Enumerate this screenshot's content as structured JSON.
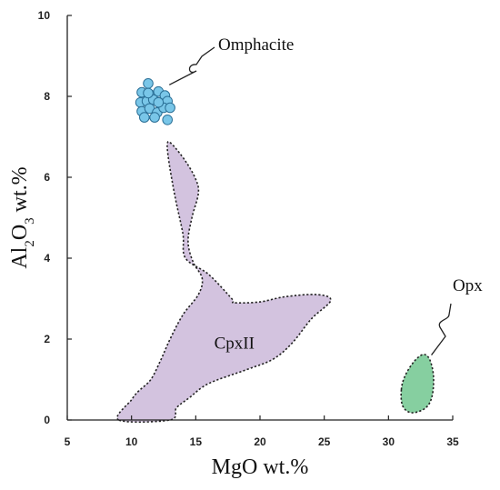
{
  "chart_data": {
    "type": "scatter",
    "xlabel": "MgO wt.%",
    "ylabel_parts": [
      "Al",
      "2",
      "O",
      "3",
      " wt.%"
    ],
    "xlim": [
      5,
      35
    ],
    "ylim": [
      0,
      10
    ],
    "x_ticks": [
      5,
      10,
      15,
      20,
      25,
      30,
      35
    ],
    "y_ticks": [
      0,
      2,
      4,
      6,
      8,
      10
    ],
    "grid": false,
    "colors": {
      "omphacite": "#79C6E8",
      "cpx": "#D3C3DF",
      "opx": "#86CFA0",
      "outline": "#222222"
    },
    "series": [
      {
        "name": "Omphacite",
        "kind": "points",
        "points": [
          [
            11.3,
            8.32
          ],
          [
            10.8,
            8.1
          ],
          [
            11.6,
            8.02
          ],
          [
            12.1,
            8.12
          ],
          [
            12.6,
            8.02
          ],
          [
            10.7,
            7.85
          ],
          [
            11.2,
            7.88
          ],
          [
            11.7,
            7.92
          ],
          [
            12.3,
            7.82
          ],
          [
            12.8,
            7.88
          ],
          [
            10.8,
            7.63
          ],
          [
            11.4,
            7.7
          ],
          [
            12.0,
            7.6
          ],
          [
            12.5,
            7.72
          ],
          [
            13.0,
            7.72
          ],
          [
            11.0,
            7.48
          ],
          [
            11.8,
            7.48
          ],
          [
            12.8,
            7.42
          ],
          [
            11.3,
            8.08
          ],
          [
            12.1,
            7.85
          ]
        ]
      },
      {
        "name": "CpxII",
        "kind": "region",
        "outline": [
          [
            9.0,
            0.0
          ],
          [
            11.5,
            1.0
          ],
          [
            13.5,
            2.0
          ],
          [
            15.5,
            3.0
          ],
          [
            16.5,
            3.3
          ],
          [
            16.0,
            3.55
          ],
          [
            15.0,
            3.9
          ],
          [
            14.6,
            4.5
          ],
          [
            15.0,
            5.0
          ],
          [
            15.3,
            5.6
          ],
          [
            14.8,
            6.1
          ],
          [
            13.8,
            6.65
          ],
          [
            12.8,
            6.95
          ],
          [
            12.8,
            6.3
          ],
          [
            13.3,
            5.0
          ],
          [
            14.0,
            3.7
          ],
          [
            13.5,
            2.5
          ],
          [
            10.5,
            1.5
          ],
          [
            9.0,
            0.0
          ]
        ],
        "smooth_outline": [
          [
            9.0,
            0.0
          ],
          [
            10.0,
            0.5
          ],
          [
            10.5,
            0.7
          ],
          [
            11.5,
            1.0
          ],
          [
            12.3,
            1.5
          ],
          [
            13.0,
            2.0
          ],
          [
            14.0,
            2.6
          ],
          [
            15.2,
            3.1
          ],
          [
            15.5,
            3.5
          ],
          [
            14.8,
            3.9
          ],
          [
            14.4,
            4.4
          ],
          [
            14.7,
            5.0
          ],
          [
            15.2,
            5.6
          ],
          [
            15.0,
            5.95
          ],
          [
            14.2,
            6.4
          ],
          [
            13.2,
            6.8
          ],
          [
            12.8,
            6.85
          ],
          [
            12.9,
            6.4
          ],
          [
            13.4,
            5.5
          ],
          [
            14.0,
            4.6
          ],
          [
            14.2,
            4.0
          ],
          [
            16.0,
            3.6
          ],
          [
            17.8,
            3.0
          ],
          [
            18.0,
            2.9
          ],
          [
            20.0,
            2.92
          ],
          [
            22.0,
            3.05
          ],
          [
            24.5,
            3.1
          ],
          [
            25.5,
            2.95
          ],
          [
            24.0,
            2.5
          ],
          [
            22.5,
            1.9
          ],
          [
            21.0,
            1.5
          ],
          [
            19.0,
            1.25
          ],
          [
            16.0,
            0.9
          ],
          [
            14.5,
            0.55
          ],
          [
            13.5,
            0.3
          ],
          [
            13.0,
            0.0
          ]
        ]
      },
      {
        "name": "Opx",
        "kind": "region",
        "outline": [
          [
            31.0,
            0.75
          ],
          [
            31.3,
            1.1
          ],
          [
            32.0,
            1.45
          ],
          [
            32.7,
            1.62
          ],
          [
            33.2,
            1.5
          ],
          [
            33.5,
            1.1
          ],
          [
            33.4,
            0.6
          ],
          [
            32.9,
            0.3
          ],
          [
            31.8,
            0.18
          ],
          [
            31.1,
            0.35
          ]
        ]
      }
    ],
    "annotations": [
      {
        "text": "Omphacite",
        "target": [
          12.8,
          8.15
        ]
      },
      {
        "text": "CpxII",
        "at": [
          18.0,
          1.92
        ]
      },
      {
        "text": "Opx",
        "target": [
          33.2,
          1.65
        ]
      }
    ]
  }
}
